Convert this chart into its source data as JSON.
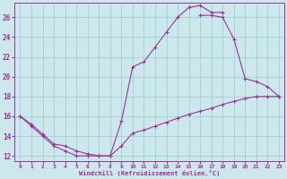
{
  "xlabel": "Windchill (Refroidissement éolien,°C)",
  "background_color": "#cce8ec",
  "line_color": "#993399",
  "grid_color": "#99cccc",
  "xlim": [
    -0.5,
    23.5
  ],
  "ylim": [
    11.5,
    27.5
  ],
  "yticks": [
    12,
    14,
    16,
    18,
    20,
    22,
    24,
    26
  ],
  "xticks": [
    0,
    1,
    2,
    3,
    4,
    5,
    6,
    7,
    8,
    9,
    10,
    11,
    12,
    13,
    14,
    15,
    16,
    17,
    18,
    19,
    20,
    21,
    22,
    23
  ],
  "series": [
    {
      "x": [
        0,
        1,
        2,
        3,
        4,
        5,
        6,
        7,
        8,
        9,
        10,
        11,
        12,
        13,
        14,
        15,
        16,
        17,
        18
      ],
      "y": [
        16.0,
        15.0,
        14.0,
        13.0,
        12.5,
        12.0,
        12.0,
        12.0,
        12.0,
        15.5,
        21.0,
        21.5,
        23.0,
        24.5,
        26.0,
        27.0,
        27.2,
        26.5,
        26.5
      ]
    },
    {
      "x": [
        16,
        17,
        18,
        19,
        20,
        21,
        22,
        23
      ],
      "y": [
        26.2,
        26.2,
        26.0,
        23.8,
        19.8,
        19.5,
        19.0,
        18.0
      ]
    },
    {
      "x": [
        0,
        1,
        2,
        3,
        4,
        5,
        6,
        7,
        8,
        9,
        10,
        11,
        12,
        13,
        14,
        15,
        16,
        17,
        18,
        19,
        20,
        21,
        22,
        23
      ],
      "y": [
        16.0,
        15.2,
        14.2,
        13.2,
        13.0,
        12.5,
        12.2,
        12.0,
        12.0,
        13.0,
        14.3,
        14.6,
        15.0,
        15.4,
        15.8,
        16.2,
        16.5,
        16.8,
        17.2,
        17.5,
        17.8,
        18.0,
        18.0,
        18.0
      ]
    }
  ]
}
